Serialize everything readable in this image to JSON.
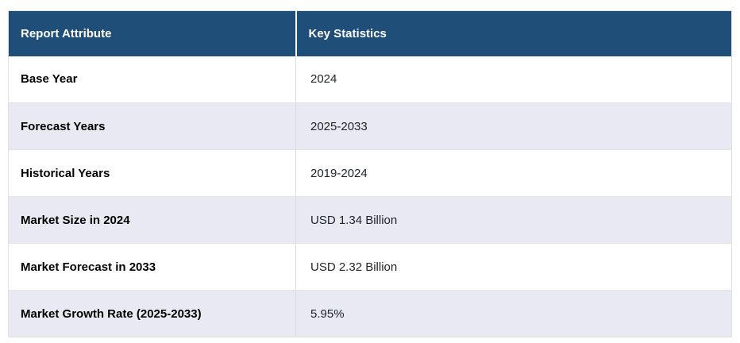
{
  "table": {
    "header": {
      "attribute": "Report Attribute",
      "statistics": "Key Statistics"
    },
    "rows": [
      {
        "attribute": "Base Year",
        "value": "2024"
      },
      {
        "attribute": "Forecast Years",
        "value": "2025-2033"
      },
      {
        "attribute": "Historical Years",
        "value": "2019-2024"
      },
      {
        "attribute": "Market Size in 2024",
        "value": "USD 1.34 Billion"
      },
      {
        "attribute": "Market Forecast in 2033",
        "value": "USD 2.32 Billion"
      },
      {
        "attribute": "Market Growth Rate (2025-2033)",
        "value": "5.95%"
      }
    ]
  },
  "colors": {
    "header_bg": "#1F4E79",
    "header_text": "#FFFFFF",
    "row_bg": "#FFFFFF",
    "row_alt_bg": "#E8E9F3",
    "border": "#E3E4EA",
    "outer_border": "#DFE0E6",
    "divider": "#DCDDE3",
    "attr_text": "#000000",
    "value_text": "#212529"
  },
  "chart_data": {
    "type": "table",
    "title": "",
    "columns": [
      "Report Attribute",
      "Key Statistics"
    ],
    "rows": [
      [
        "Base Year",
        "2024"
      ],
      [
        "Forecast Years",
        "2025-2033"
      ],
      [
        "Historical Years",
        "2019-2024"
      ],
      [
        "Market Size in 2024",
        "USD 1.34 Billion"
      ],
      [
        "Market Forecast in 2033",
        "USD 2.32 Billion"
      ],
      [
        "Market Growth Rate (2025-2033)",
        "5.95%"
      ]
    ]
  }
}
